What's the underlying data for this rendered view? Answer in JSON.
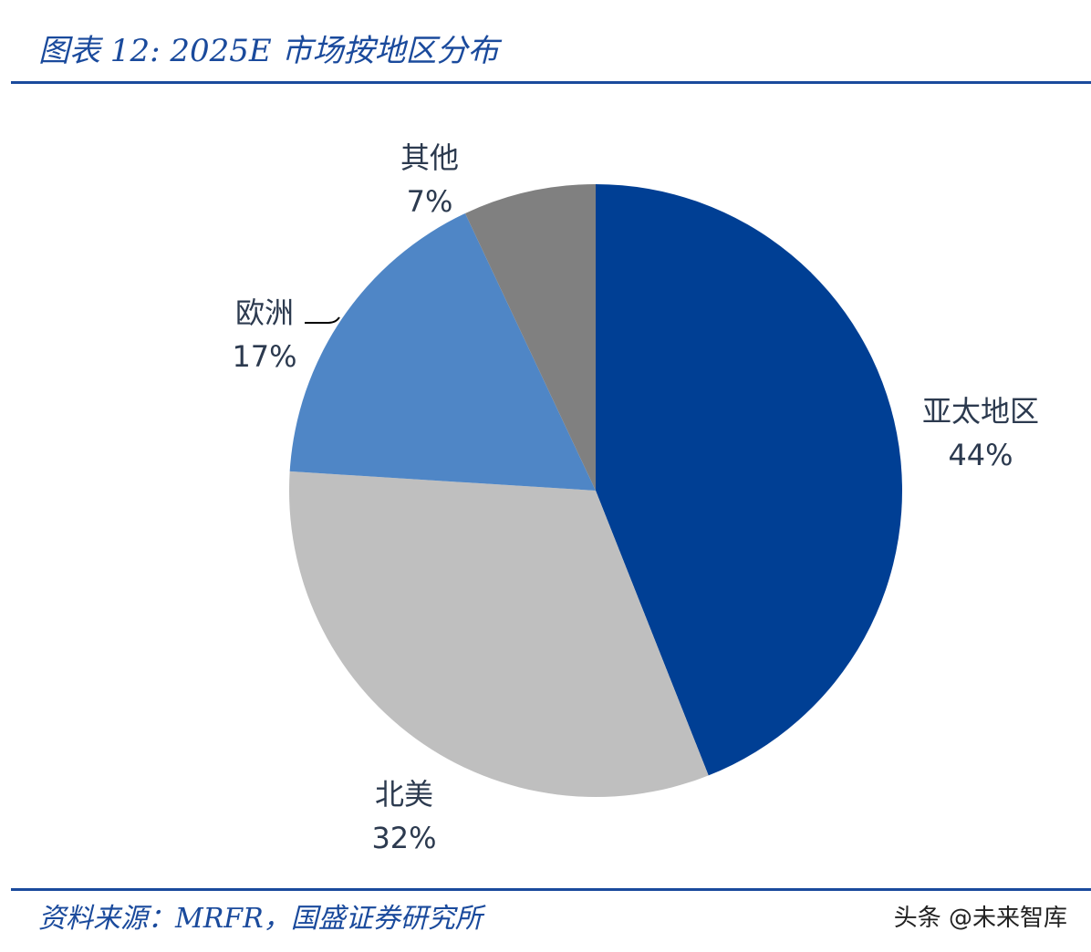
{
  "title": "图表 12:  2025E 市场按地区分布",
  "source": "资料来源：MRFR，国盛证券研究所",
  "watermark": "头条 @未来智库",
  "chart_data": {
    "type": "pie",
    "title": "2025E 市场按地区分布",
    "start": "top, clockwise",
    "slices": [
      {
        "label": "亚太地区",
        "value": 44,
        "text": "44%",
        "color": "#003f94"
      },
      {
        "label": "北美",
        "value": 32,
        "text": "32%",
        "color": "#bfbfbf"
      },
      {
        "label": "欧洲",
        "value": 17,
        "text": "17%",
        "color": "#4f86c6"
      },
      {
        "label": "其他",
        "value": 7,
        "text": "7%",
        "color": "#808080"
      }
    ]
  }
}
